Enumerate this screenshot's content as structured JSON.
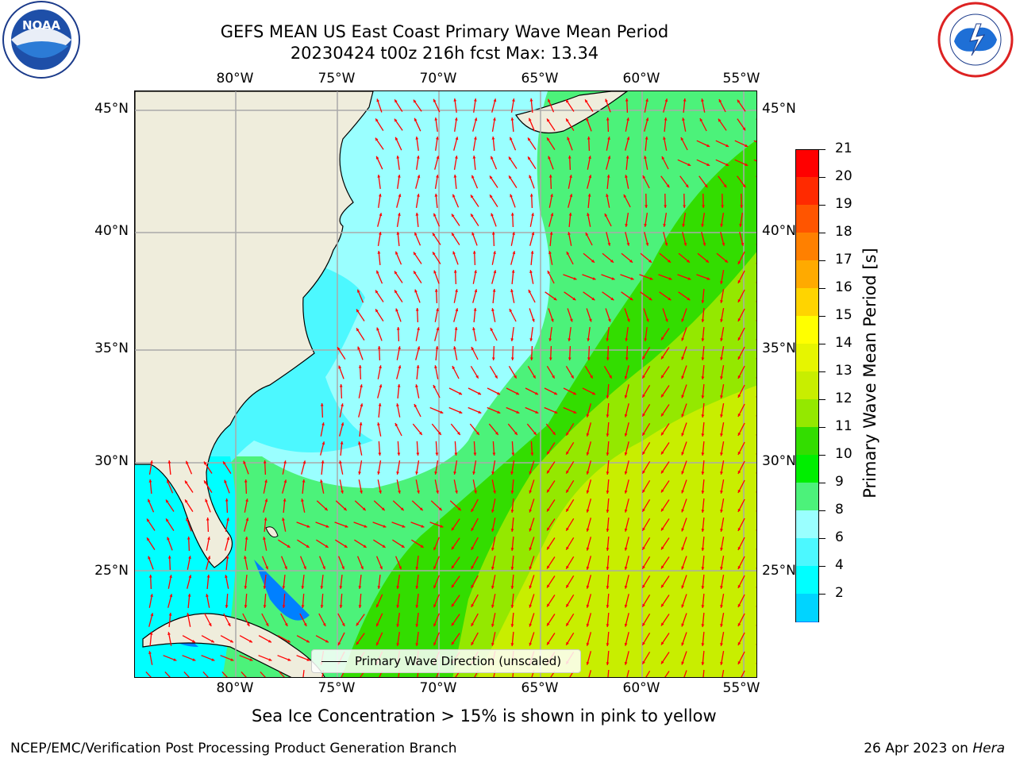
{
  "title": {
    "line1": "GEFS MEAN US East Coast Primary Wave Mean Period",
    "line2": "20230424 t00z 216h fcst   Max: 13.34"
  },
  "map": {
    "lon_ticks": [
      "80°W",
      "75°W",
      "70°W",
      "65°W",
      "60°W",
      "55°W"
    ],
    "lat_ticks": [
      "45°N",
      "40°N",
      "35°N",
      "30°N",
      "25°N"
    ],
    "lon_range": [
      -85,
      -54.5
    ],
    "lat_range": [
      20.5,
      46
    ],
    "land_color": "#efeddc",
    "arrow_color": "#ff0000",
    "legend_label": "Primary Wave Direction (unscaled)"
  },
  "colorbar": {
    "label": "Primary Wave Mean Period [s]",
    "ticks": [
      "21",
      "20",
      "19",
      "18",
      "17",
      "16",
      "15",
      "14",
      "13",
      "12",
      "11",
      "10",
      "9",
      "8",
      "6",
      "4",
      "2"
    ],
    "colors": [
      "#ff0000",
      "#ff2a00",
      "#ff5500",
      "#ff8000",
      "#ffaa00",
      "#ffd400",
      "#ffff00",
      "#e6f500",
      "#c8ee00",
      "#94e800",
      "#33dd00",
      "#00ee00",
      "#4cf27a",
      "#9affff",
      "#4cf8ff",
      "#00ffff",
      "#00d4ff",
      "#0080ff"
    ],
    "extend_color": "#0000ff"
  },
  "subtitle": "Sea Ice Concentration > 15% is shown in pink to yellow",
  "footer": {
    "left": "NCEP/EMC/Verification Post Processing Product Generation Branch",
    "right_date": "26 Apr 2023 on ",
    "right_machine": "Hera"
  },
  "logos": {
    "noaa": "NOAA",
    "nws": "NATIONAL WEATHER SERVICE"
  }
}
